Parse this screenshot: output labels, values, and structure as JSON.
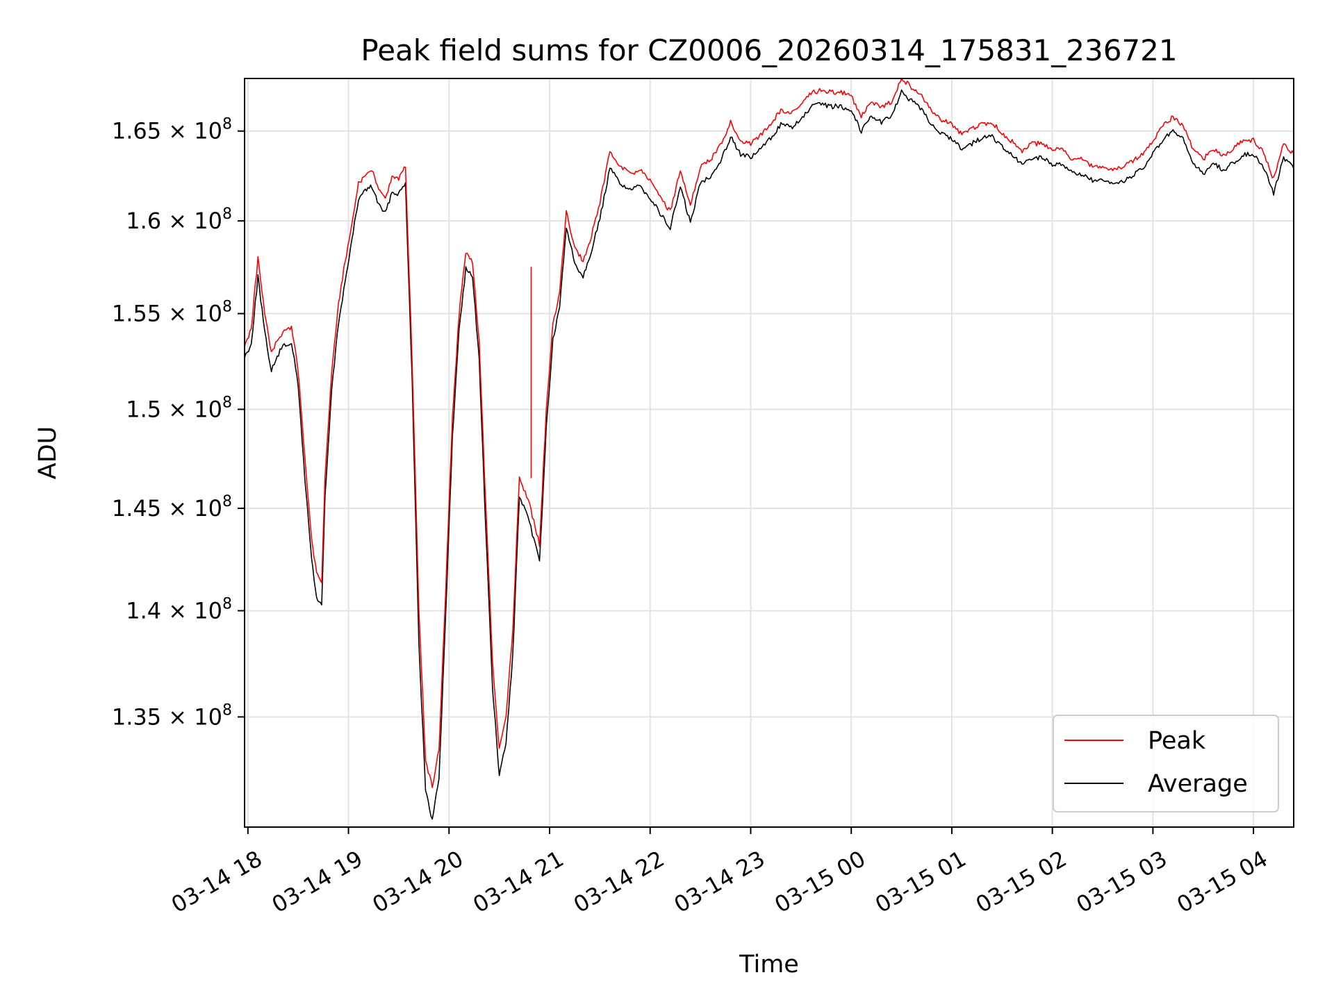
{
  "chart_data": {
    "type": "line",
    "title": "Peak field sums for CZ0006_20260314_175831_236721",
    "xlabel": "Time",
    "ylabel": "ADU",
    "y_scale": "log",
    "ylim": [
      130000000,
      168000000
    ],
    "xlim": [
      "2026-03-14 17:58",
      "2026-03-15 04:24"
    ],
    "grid": true,
    "legend_position": "lower-right",
    "x_ticks": [
      "03-14 18",
      "03-14 19",
      "03-14 20",
      "03-14 21",
      "03-14 22",
      "03-14 23",
      "03-15 00",
      "03-15 01",
      "03-15 02",
      "03-15 03",
      "03-15 04"
    ],
    "y_ticks": [
      {
        "value": 135000000,
        "label": "1.35×10⁸",
        "mant": "1.35",
        "exp": "8"
      },
      {
        "value": 140000000,
        "label": "1.4×10⁸",
        "mant": "1.4",
        "exp": "8"
      },
      {
        "value": 145000000,
        "label": "1.45×10⁸",
        "mant": "1.45",
        "exp": "8"
      },
      {
        "value": 150000000,
        "label": "1.5×10⁸",
        "mant": "1.5",
        "exp": "8"
      },
      {
        "value": 155000000,
        "label": "1.55×10⁸",
        "mant": "1.55",
        "exp": "8"
      },
      {
        "value": 160000000,
        "label": "1.6×10⁸",
        "mant": "1.6",
        "exp": "8"
      },
      {
        "value": 165000000,
        "label": "1.65×10⁸",
        "mant": "1.65",
        "exp": "8"
      }
    ],
    "series": [
      {
        "name": "Peak",
        "color": "#ff0000",
        "x": [
          "2026-03-14 17:58",
          "2026-03-14 18:02",
          "2026-03-14 18:06",
          "2026-03-14 18:10",
          "2026-03-14 18:14",
          "2026-03-14 18:20",
          "2026-03-14 18:26",
          "2026-03-14 18:30",
          "2026-03-14 18:34",
          "2026-03-14 18:38",
          "2026-03-14 18:41",
          "2026-03-14 18:44",
          "2026-03-14 18:46",
          "2026-03-14 18:50",
          "2026-03-14 18:54",
          "2026-03-14 18:58",
          "2026-03-14 19:02",
          "2026-03-14 19:06",
          "2026-03-14 19:10",
          "2026-03-14 19:14",
          "2026-03-14 19:18",
          "2026-03-14 19:22",
          "2026-03-14 19:26",
          "2026-03-14 19:30",
          "2026-03-14 19:34",
          "2026-03-14 19:38",
          "2026-03-14 19:42",
          "2026-03-14 19:46",
          "2026-03-14 19:50",
          "2026-03-14 19:54",
          "2026-03-14 19:58",
          "2026-03-14 20:02",
          "2026-03-14 20:06",
          "2026-03-14 20:10",
          "2026-03-14 20:14",
          "2026-03-14 20:18",
          "2026-03-14 20:22",
          "2026-03-14 20:26",
          "2026-03-14 20:30",
          "2026-03-14 20:34",
          "2026-03-14 20:38",
          "2026-03-14 20:42",
          "2026-03-14 20:48",
          "2026-03-14 20:54",
          "2026-03-14 20:58",
          "2026-03-14 21:02",
          "2026-03-14 21:06",
          "2026-03-14 21:10",
          "2026-03-14 21:15",
          "2026-03-14 21:20",
          "2026-03-14 21:25",
          "2026-03-14 21:30",
          "2026-03-14 21:36",
          "2026-03-14 21:42",
          "2026-03-14 21:48",
          "2026-03-14 21:54",
          "2026-03-14 22:00",
          "2026-03-14 22:06",
          "2026-03-14 22:12",
          "2026-03-14 22:18",
          "2026-03-14 22:24",
          "2026-03-14 22:30",
          "2026-03-14 22:36",
          "2026-03-14 22:42",
          "2026-03-14 22:48",
          "2026-03-14 22:54",
          "2026-03-14 23:00",
          "2026-03-14 23:06",
          "2026-03-14 23:12",
          "2026-03-14 23:18",
          "2026-03-14 23:24",
          "2026-03-14 23:30",
          "2026-03-14 23:36",
          "2026-03-14 23:42",
          "2026-03-14 23:48",
          "2026-03-14 23:54",
          "2026-03-15 00:00",
          "2026-03-15 00:06",
          "2026-03-15 00:12",
          "2026-03-15 00:18",
          "2026-03-15 00:24",
          "2026-03-15 00:30",
          "2026-03-15 00:36",
          "2026-03-15 00:42",
          "2026-03-15 00:48",
          "2026-03-15 00:54",
          "2026-03-15 01:00",
          "2026-03-15 01:06",
          "2026-03-15 01:12",
          "2026-03-15 01:18",
          "2026-03-15 01:24",
          "2026-03-15 01:30",
          "2026-03-15 01:36",
          "2026-03-15 01:42",
          "2026-03-15 01:48",
          "2026-03-15 01:54",
          "2026-03-15 02:00",
          "2026-03-15 02:06",
          "2026-03-15 02:12",
          "2026-03-15 02:18",
          "2026-03-15 02:24",
          "2026-03-15 02:30",
          "2026-03-15 02:36",
          "2026-03-15 02:42",
          "2026-03-15 02:48",
          "2026-03-15 02:54",
          "2026-03-15 03:00",
          "2026-03-15 03:06",
          "2026-03-15 03:12",
          "2026-03-15 03:18",
          "2026-03-15 03:24",
          "2026-03-15 03:30",
          "2026-03-15 03:36",
          "2026-03-15 03:42",
          "2026-03-15 03:48",
          "2026-03-15 03:54",
          "2026-03-15 04:00",
          "2026-03-15 04:06",
          "2026-03-15 04:12",
          "2026-03-15 04:18",
          "2026-03-15 04:24"
        ],
        "values": [
          153300000,
          154200000,
          158000000,
          155000000,
          153000000,
          153900000,
          154300000,
          152000000,
          147500000,
          143500000,
          141800000,
          141300000,
          146500000,
          152000000,
          155500000,
          157800000,
          159800000,
          162100000,
          162500000,
          162800000,
          161800000,
          161200000,
          162400000,
          162300000,
          163000000,
          152500000,
          140000000,
          133000000,
          131800000,
          133500000,
          141000000,
          149500000,
          155000000,
          158300000,
          157800000,
          153500000,
          145000000,
          137500000,
          133500000,
          135000000,
          139000000,
          146600000,
          145200000,
          143200000,
          150000000,
          154400000,
          156200000,
          160500000,
          158500000,
          157800000,
          159200000,
          161000000,
          163800000,
          163000000,
          162600000,
          162800000,
          162200000,
          161300000,
          160500000,
          162800000,
          160800000,
          163000000,
          163400000,
          164200000,
          165500000,
          164500000,
          164300000,
          164800000,
          165400000,
          166200000,
          166000000,
          166400000,
          167200000,
          167300000,
          167200000,
          167200000,
          167000000,
          165800000,
          166700000,
          166300000,
          166700000,
          168000000,
          167500000,
          167000000,
          166200000,
          165600000,
          165400000,
          164800000,
          165100000,
          165400000,
          165500000,
          164900000,
          164400000,
          163900000,
          164300000,
          164300000,
          163900000,
          164000000,
          163400000,
          163400000,
          163000000,
          163000000,
          162800000,
          163000000,
          163300000,
          163700000,
          164500000,
          165300000,
          165800000,
          165300000,
          164000000,
          163400000,
          164000000,
          163600000,
          164000000,
          164500000,
          164500000,
          163800000,
          162300000,
          164300000,
          163700000
        ],
        "spikes": [
          {
            "x": "2026-03-14 20:49",
            "value": 157500000
          }
        ]
      },
      {
        "name": "Average",
        "color": "#000000",
        "x": [
          "2026-03-14 17:58",
          "2026-03-14 18:02",
          "2026-03-14 18:06",
          "2026-03-14 18:10",
          "2026-03-14 18:14",
          "2026-03-14 18:20",
          "2026-03-14 18:26",
          "2026-03-14 18:30",
          "2026-03-14 18:34",
          "2026-03-14 18:38",
          "2026-03-14 18:41",
          "2026-03-14 18:44",
          "2026-03-14 18:46",
          "2026-03-14 18:50",
          "2026-03-14 18:54",
          "2026-03-14 18:58",
          "2026-03-14 19:02",
          "2026-03-14 19:06",
          "2026-03-14 19:10",
          "2026-03-14 19:14",
          "2026-03-14 19:18",
          "2026-03-14 19:22",
          "2026-03-14 19:26",
          "2026-03-14 19:30",
          "2026-03-14 19:34",
          "2026-03-14 19:38",
          "2026-03-14 19:42",
          "2026-03-14 19:46",
          "2026-03-14 19:50",
          "2026-03-14 19:54",
          "2026-03-14 19:58",
          "2026-03-14 20:02",
          "2026-03-14 20:06",
          "2026-03-14 20:10",
          "2026-03-14 20:14",
          "2026-03-14 20:18",
          "2026-03-14 20:22",
          "2026-03-14 20:26",
          "2026-03-14 20:30",
          "2026-03-14 20:34",
          "2026-03-14 20:38",
          "2026-03-14 20:42",
          "2026-03-14 20:48",
          "2026-03-14 20:54",
          "2026-03-14 20:58",
          "2026-03-14 21:02",
          "2026-03-14 21:06",
          "2026-03-14 21:10",
          "2026-03-14 21:15",
          "2026-03-14 21:20",
          "2026-03-14 21:25",
          "2026-03-14 21:30",
          "2026-03-14 21:36",
          "2026-03-14 21:42",
          "2026-03-14 21:48",
          "2026-03-14 21:54",
          "2026-03-14 22:00",
          "2026-03-14 22:06",
          "2026-03-14 22:12",
          "2026-03-14 22:18",
          "2026-03-14 22:24",
          "2026-03-14 22:30",
          "2026-03-14 22:36",
          "2026-03-14 22:42",
          "2026-03-14 22:48",
          "2026-03-14 22:54",
          "2026-03-14 23:00",
          "2026-03-14 23:06",
          "2026-03-14 23:12",
          "2026-03-14 23:18",
          "2026-03-14 23:24",
          "2026-03-14 23:30",
          "2026-03-14 23:36",
          "2026-03-14 23:42",
          "2026-03-14 23:48",
          "2026-03-14 23:54",
          "2026-03-15 00:00",
          "2026-03-15 00:06",
          "2026-03-15 00:12",
          "2026-03-15 00:18",
          "2026-03-15 00:24",
          "2026-03-15 00:30",
          "2026-03-15 00:36",
          "2026-03-15 00:42",
          "2026-03-15 00:48",
          "2026-03-15 00:54",
          "2026-03-15 01:00",
          "2026-03-15 01:06",
          "2026-03-15 01:12",
          "2026-03-15 01:18",
          "2026-03-15 01:24",
          "2026-03-15 01:30",
          "2026-03-15 01:36",
          "2026-03-15 01:42",
          "2026-03-15 01:48",
          "2026-03-15 01:54",
          "2026-03-15 02:00",
          "2026-03-15 02:06",
          "2026-03-15 02:12",
          "2026-03-15 02:18",
          "2026-03-15 02:24",
          "2026-03-15 02:30",
          "2026-03-15 02:36",
          "2026-03-15 02:42",
          "2026-03-15 02:48",
          "2026-03-15 02:54",
          "2026-03-15 03:00",
          "2026-03-15 03:06",
          "2026-03-15 03:12",
          "2026-03-15 03:18",
          "2026-03-15 03:24",
          "2026-03-15 03:30",
          "2026-03-15 03:36",
          "2026-03-15 03:42",
          "2026-03-15 03:48",
          "2026-03-15 03:54",
          "2026-03-15 04:00",
          "2026-03-15 04:06",
          "2026-03-15 04:12",
          "2026-03-15 04:18",
          "2026-03-15 04:24"
        ],
        "values": [
          152700000,
          153400000,
          157000000,
          154000000,
          152000000,
          153200000,
          153500000,
          151200000,
          146500000,
          142500000,
          140600000,
          140300000,
          145500000,
          151000000,
          154500000,
          156700000,
          158900000,
          161200000,
          161700000,
          161900000,
          160900000,
          160400000,
          161600000,
          161500000,
          162100000,
          151500000,
          138500000,
          131600000,
          130300000,
          132200000,
          139800000,
          148500000,
          154200000,
          157400000,
          157000000,
          152600000,
          143800000,
          136300000,
          132300000,
          133800000,
          137800000,
          145600000,
          144300000,
          142400000,
          149000000,
          153600000,
          155300000,
          159700000,
          157700000,
          157000000,
          158400000,
          160100000,
          162900000,
          162100000,
          161700000,
          161900000,
          161300000,
          160400000,
          159600000,
          161900000,
          159900000,
          162100000,
          162500000,
          163300000,
          164700000,
          163700000,
          163500000,
          164000000,
          164600000,
          165400000,
          165200000,
          165600000,
          166400000,
          166500000,
          166400000,
          166400000,
          166200000,
          165000000,
          165900000,
          165500000,
          165900000,
          167200000,
          166700000,
          166200000,
          165400000,
          164800000,
          164600000,
          164000000,
          164300000,
          164600000,
          164700000,
          164100000,
          163600000,
          163100000,
          163500000,
          163500000,
          163100000,
          163200000,
          162600000,
          162600000,
          162200000,
          162200000,
          162000000,
          162200000,
          162500000,
          162900000,
          163700000,
          164500000,
          165000000,
          164500000,
          163200000,
          162600000,
          163200000,
          162800000,
          163200000,
          163700000,
          163700000,
          163000000,
          161500000,
          163500000,
          162900000
        ]
      }
    ]
  }
}
